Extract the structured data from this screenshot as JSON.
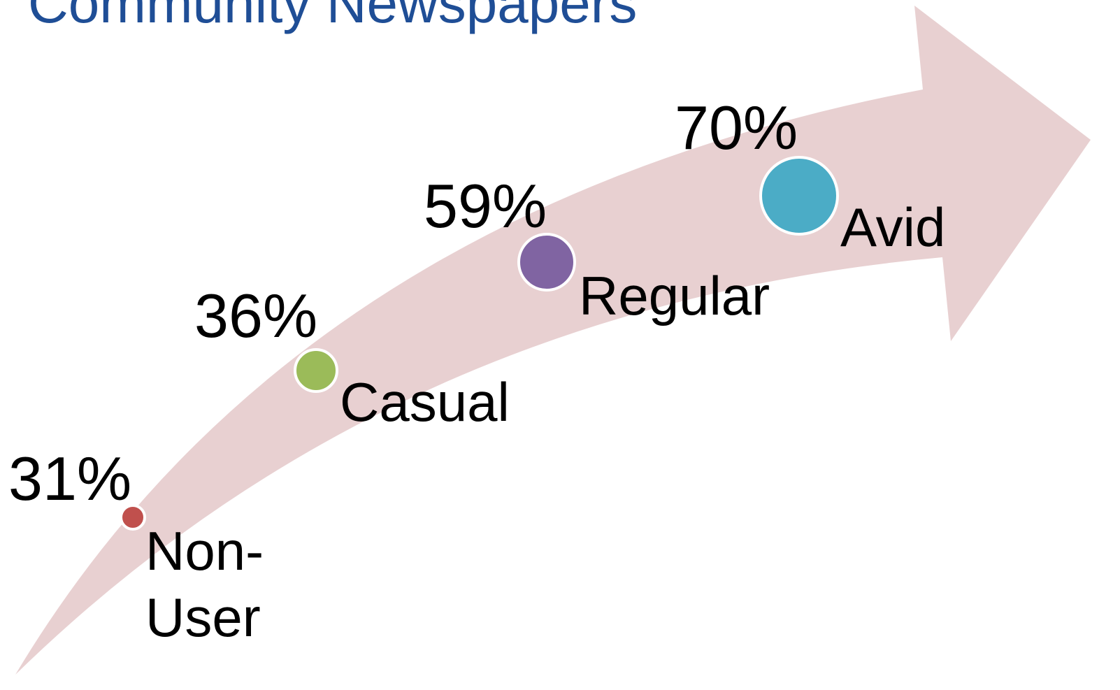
{
  "title": "Community Newspapers",
  "nodes": [
    {
      "percent": "31%",
      "label": [
        "Non-",
        "User"
      ]
    },
    {
      "percent": "36%",
      "label": [
        "Casual"
      ]
    },
    {
      "percent": "59%",
      "label": [
        "Regular"
      ]
    },
    {
      "percent": "70%",
      "label": [
        "Avid"
      ]
    }
  ]
}
